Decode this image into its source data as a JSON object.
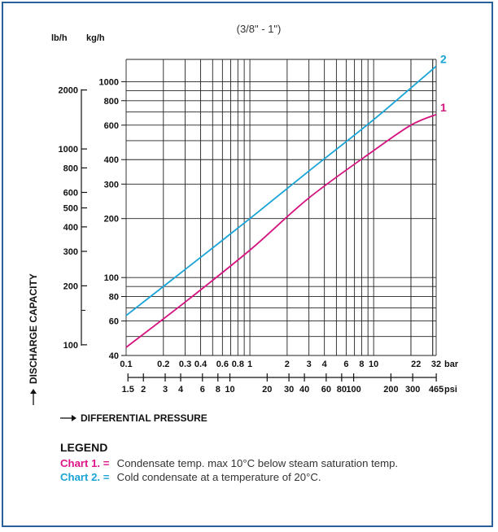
{
  "chart_data": {
    "type": "line",
    "title": "(3/8\" - 1\")",
    "x_scale": "log",
    "y_scale": "log",
    "x_axis_bar": {
      "unit_label": "bar",
      "ticks": [
        {
          "value": 0.1,
          "label": "0.1"
        },
        {
          "value": 0.2,
          "label": "0.2"
        },
        {
          "value": 0.3,
          "label": "0.3"
        },
        {
          "value": 0.4,
          "label": "0.4"
        },
        {
          "value": 0.6,
          "label": "0.6"
        },
        {
          "value": 0.8,
          "label": "0.8"
        },
        {
          "value": 1,
          "label": "1"
        },
        {
          "value": 2,
          "label": "2"
        },
        {
          "value": 3,
          "label": "3"
        },
        {
          "value": 4,
          "label": "4"
        },
        {
          "value": 6,
          "label": "6"
        },
        {
          "value": 8,
          "label": "8"
        },
        {
          "value": 10,
          "label": "10"
        },
        {
          "value": 22,
          "label": "22"
        },
        {
          "value": 32,
          "label": "32"
        }
      ],
      "range": [
        0.1,
        32
      ]
    },
    "x_axis_psi": {
      "unit_label": "psi",
      "ticks": [
        {
          "value": 1.5,
          "label": "1.5"
        },
        {
          "value": 2,
          "label": "2"
        },
        {
          "value": 3,
          "label": "3"
        },
        {
          "value": 4,
          "label": "4"
        },
        {
          "value": 6,
          "label": "6"
        },
        {
          "value": 8,
          "label": "8"
        },
        {
          "value": 10,
          "label": "10"
        },
        {
          "value": 20,
          "label": "20"
        },
        {
          "value": 30,
          "label": "30"
        },
        {
          "value": 40,
          "label": "40"
        },
        {
          "value": 60,
          "label": "60"
        },
        {
          "value": 80,
          "label": "80"
        },
        {
          "value": 100,
          "label": "100"
        },
        {
          "value": 200,
          "label": "200"
        },
        {
          "value": 300,
          "label": "300"
        },
        {
          "value": 465,
          "label": "465"
        }
      ]
    },
    "y_axis_kg": {
      "unit_label": "kg/h",
      "ticks": [
        {
          "value": 40,
          "label": "40"
        },
        {
          "value": 60,
          "label": "60"
        },
        {
          "value": 80,
          "label": "80"
        },
        {
          "value": 100,
          "label": "100"
        },
        {
          "value": 200,
          "label": "200"
        },
        {
          "value": 300,
          "label": "300"
        },
        {
          "value": 400,
          "label": "400"
        },
        {
          "value": 600,
          "label": "600"
        },
        {
          "value": 800,
          "label": "800"
        },
        {
          "value": 1000,
          "label": "1000"
        }
      ],
      "range": [
        40,
        1300
      ]
    },
    "y_axis_lb": {
      "unit_label": "lb/h",
      "ticks": [
        {
          "value": 100,
          "label": "100"
        },
        {
          "value": 200,
          "label": "200"
        },
        {
          "value": 300,
          "label": "300"
        },
        {
          "value": 400,
          "label": "400"
        },
        {
          "value": 500,
          "label": "500"
        },
        {
          "value": 600,
          "label": "600"
        },
        {
          "value": 800,
          "label": "800"
        },
        {
          "value": 1000,
          "label": "1000"
        },
        {
          "value": 2000,
          "label": "2000"
        }
      ],
      "minor_ticks": [
        150
      ]
    },
    "xlabel": "DIFFERENTIAL PRESSURE",
    "ylabel": "DISCHARGE CAPACITY",
    "grid": true,
    "series": [
      {
        "name": "1",
        "color": "#d4137f",
        "x": [
          0.1,
          0.3,
          1,
          3,
          10,
          20,
          32
        ],
        "y": [
          44,
          75,
          138,
          255,
          445,
          600,
          680
        ]
      },
      {
        "name": "2",
        "color": "#1aa3d6",
        "x": [
          0.1,
          0.3,
          1,
          3,
          10,
          32
        ],
        "y": [
          64,
          110,
          200,
          350,
          640,
          1200
        ]
      }
    ]
  },
  "legend": {
    "title": "LEGEND",
    "items": [
      {
        "key": "Chart 1. =",
        "text": "Condensate temp. max 10°C below steam saturation temp.",
        "color": "#e0148a"
      },
      {
        "key": "Chart 2. =",
        "text": "Cold condensate at a temperature of 20°C.",
        "color": "#1aa3d6"
      }
    ]
  }
}
